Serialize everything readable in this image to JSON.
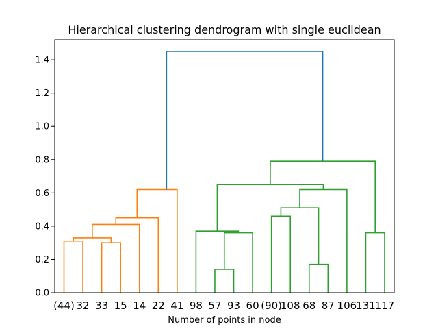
{
  "chart_data": {
    "type": "dendrogram",
    "title": "Hierarchical clustering dendrogram with single euclidean",
    "xlabel": "Number of points in node",
    "ylabel": "",
    "ylim": [
      0,
      1.52
    ],
    "yticks": [
      0.0,
      0.2,
      0.4,
      0.6,
      0.8,
      1.0,
      1.2,
      1.4
    ],
    "ytick_labels": [
      "0.0",
      "0.2",
      "0.4",
      "0.6",
      "0.8",
      "1.0",
      "1.2",
      "1.4"
    ],
    "grid": false,
    "leaves": [
      "(44)",
      "32",
      "33",
      "15",
      "14",
      "22",
      "41",
      "98",
      "57",
      "93",
      "60",
      "(90)",
      "108",
      "68",
      "87",
      "106",
      "131",
      "117"
    ],
    "colors": {
      "orange": "#ff7f0e",
      "green": "#2ca02c",
      "blue": "#1f77b4"
    },
    "links": [
      {
        "x": [
          0,
          0,
          1,
          1
        ],
        "y": [
          0,
          0.31,
          0.31,
          0
        ],
        "color": "orange"
      },
      {
        "x": [
          2,
          2,
          3,
          3
        ],
        "y": [
          0,
          0.3,
          0.3,
          0
        ],
        "color": "orange"
      },
      {
        "x": [
          0.5,
          0.5,
          2.5,
          2.5
        ],
        "y": [
          0.31,
          0.33,
          0.33,
          0.3
        ],
        "color": "orange"
      },
      {
        "x": [
          1.5,
          1.5,
          4,
          4
        ],
        "y": [
          0.33,
          0.41,
          0.41,
          0
        ],
        "color": "orange"
      },
      {
        "x": [
          2.75,
          2.75,
          5,
          5
        ],
        "y": [
          0.41,
          0.45,
          0.45,
          0
        ],
        "color": "orange"
      },
      {
        "x": [
          3.875,
          3.875,
          6,
          6
        ],
        "y": [
          0.45,
          0.62,
          0.62,
          0
        ],
        "color": "orange"
      },
      {
        "x": [
          8,
          8,
          9,
          9
        ],
        "y": [
          0,
          0.14,
          0.14,
          0
        ],
        "color": "green"
      },
      {
        "x": [
          8.5,
          8.5,
          10,
          10
        ],
        "y": [
          0.14,
          0.36,
          0.36,
          0
        ],
        "color": "green"
      },
      {
        "x": [
          7,
          7,
          9.25,
          9.25
        ],
        "y": [
          0,
          0.37,
          0.37,
          0.36
        ],
        "color": "green"
      },
      {
        "x": [
          11,
          11,
          12,
          12
        ],
        "y": [
          0,
          0.46,
          0.46,
          0
        ],
        "color": "green"
      },
      {
        "x": [
          13,
          13,
          14,
          14
        ],
        "y": [
          0,
          0.17,
          0.17,
          0
        ],
        "color": "green"
      },
      {
        "x": [
          11.5,
          11.5,
          13.5,
          13.5
        ],
        "y": [
          0.46,
          0.51,
          0.51,
          0.17
        ],
        "color": "green"
      },
      {
        "x": [
          12.5,
          12.5,
          15,
          15
        ],
        "y": [
          0.51,
          0.62,
          0.62,
          0
        ],
        "color": "green"
      },
      {
        "x": [
          8.125,
          8.125,
          13.75,
          13.75
        ],
        "y": [
          0.37,
          0.65,
          0.65,
          0.62
        ],
        "color": "green"
      },
      {
        "x": [
          16,
          16,
          17,
          17
        ],
        "y": [
          0,
          0.36,
          0.36,
          0
        ],
        "color": "green"
      },
      {
        "x": [
          10.9375,
          10.9375,
          16.5,
          16.5
        ],
        "y": [
          0.65,
          0.79,
          0.79,
          0.36
        ],
        "color": "green"
      },
      {
        "x": [
          5.4375,
          5.4375,
          13.71875,
          13.71875
        ],
        "y": [
          0.62,
          1.45,
          1.45,
          0.79
        ],
        "color": "blue"
      }
    ]
  }
}
